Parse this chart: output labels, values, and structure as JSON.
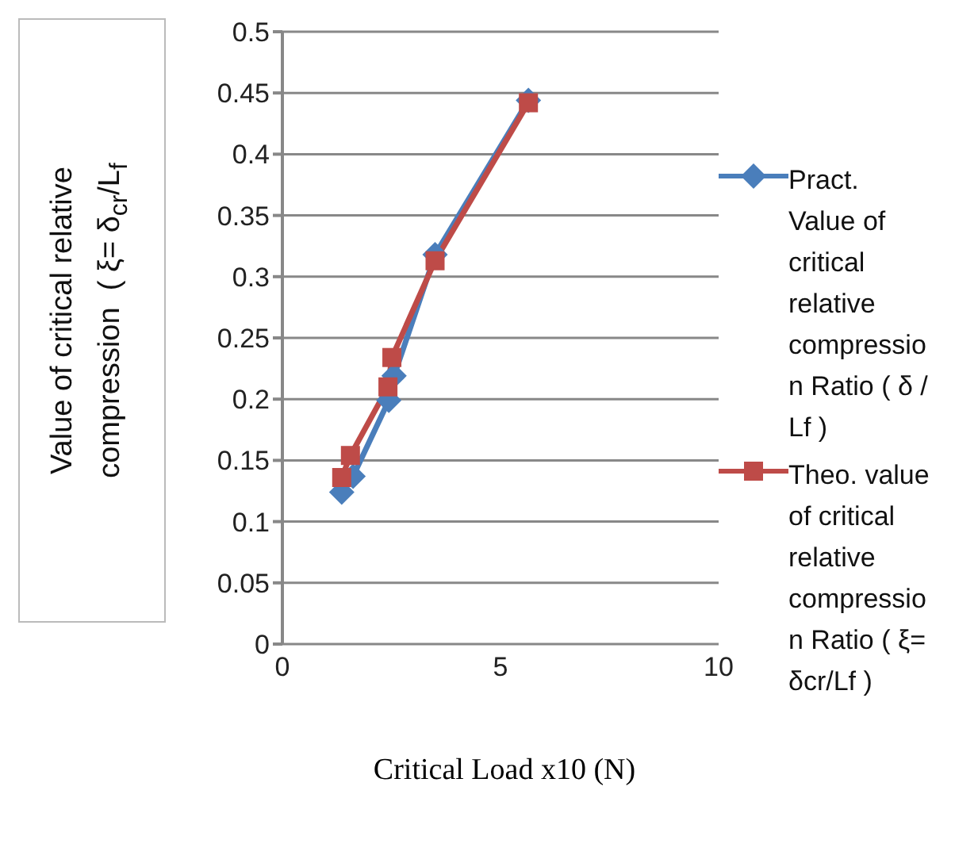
{
  "chart_data": {
    "type": "line",
    "xlabel": "Critical Load x10 (N)",
    "ylabel": "Value of critical relative compression  ( ξ= δ$_{cr}$/L$_{f}$",
    "xlim": [
      0,
      10
    ],
    "xticks": [
      0,
      5,
      10
    ],
    "ylim": [
      0,
      0.5
    ],
    "yticks": [
      0,
      0.05,
      0.1,
      0.15,
      0.2,
      0.25,
      0.3,
      0.35,
      0.4,
      0.45,
      0.5
    ],
    "grid": "y",
    "legend": "right",
    "series": [
      {
        "name": "Pract. Value of critical relative compression Ratio ( δ  / Lf )",
        "color": "#4a7ebb",
        "marker": "diamond",
        "x": [
          1.36,
          1.62,
          2.44,
          2.56,
          3.5,
          5.64
        ],
        "values": [
          0.124,
          0.137,
          0.199,
          0.219,
          0.318,
          0.444
        ]
      },
      {
        "name": "Theo. value of critical relative compression Ratio   ( ξ= δcr/Lf )",
        "color": "#be4b48",
        "marker": "square",
        "x": [
          1.36,
          1.56,
          2.42,
          2.51,
          3.5,
          5.64
        ],
        "values": [
          0.136,
          0.154,
          0.21,
          0.234,
          0.313,
          0.442
        ]
      }
    ]
  }
}
